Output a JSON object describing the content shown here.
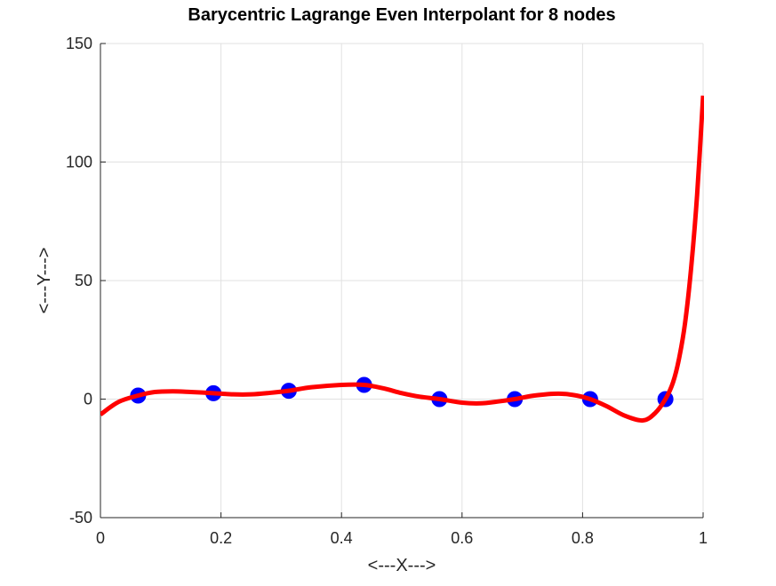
{
  "chart_data": {
    "type": "line",
    "title": "Barycentric Lagrange Even Interpolant for 8 nodes",
    "xlabel": "<---X--->",
    "ylabel": "<---Y--->",
    "xlim": [
      0,
      1
    ],
    "ylim": [
      -50,
      150
    ],
    "x_ticks": [
      0,
      0.2,
      0.4,
      0.6,
      0.8,
      1
    ],
    "x_tick_labels": [
      "0",
      "0.2",
      "0.4",
      "0.6",
      "0.8",
      "1"
    ],
    "y_ticks": [
      -50,
      0,
      50,
      100,
      150
    ],
    "y_tick_labels": [
      "-50",
      "0",
      "50",
      "100",
      "150"
    ],
    "grid": true,
    "legend": "none",
    "series": [
      {
        "kind": "scatter",
        "color": "#0000ff",
        "x": [
          0.0625,
          0.1875,
          0.3125,
          0.4375,
          0.5625,
          0.6875,
          0.8125,
          0.9375
        ],
        "y": [
          1.5,
          2.5,
          3.5,
          6,
          0,
          0,
          0,
          0
        ]
      },
      {
        "kind": "line",
        "color": "#ff0000",
        "x": [
          0,
          0.03,
          0.0625,
          0.09,
          0.12,
          0.15,
          0.1875,
          0.22,
          0.25,
          0.28,
          0.3125,
          0.35,
          0.4,
          0.4375,
          0.47,
          0.5,
          0.53,
          0.5625,
          0.6,
          0.63,
          0.66,
          0.6875,
          0.72,
          0.76,
          0.79,
          0.8125,
          0.84,
          0.87,
          0.9,
          0.92,
          0.9375,
          0.95,
          0.96,
          0.97,
          0.98,
          0.99,
          1.0
        ],
        "y": [
          -6.5,
          -1.2,
          1.5,
          3.0,
          3.3,
          3.0,
          2.5,
          2.0,
          2.0,
          2.6,
          3.5,
          5.0,
          6.0,
          6.0,
          4.5,
          2.5,
          1.0,
          0.0,
          -1.5,
          -1.8,
          -1.0,
          0.0,
          1.5,
          2.3,
          1.5,
          0.0,
          -3.0,
          -7.0,
          -9.0,
          -6.0,
          0.0,
          7.0,
          17.0,
          32.0,
          55.0,
          86.0,
          128.0
        ]
      }
    ]
  }
}
